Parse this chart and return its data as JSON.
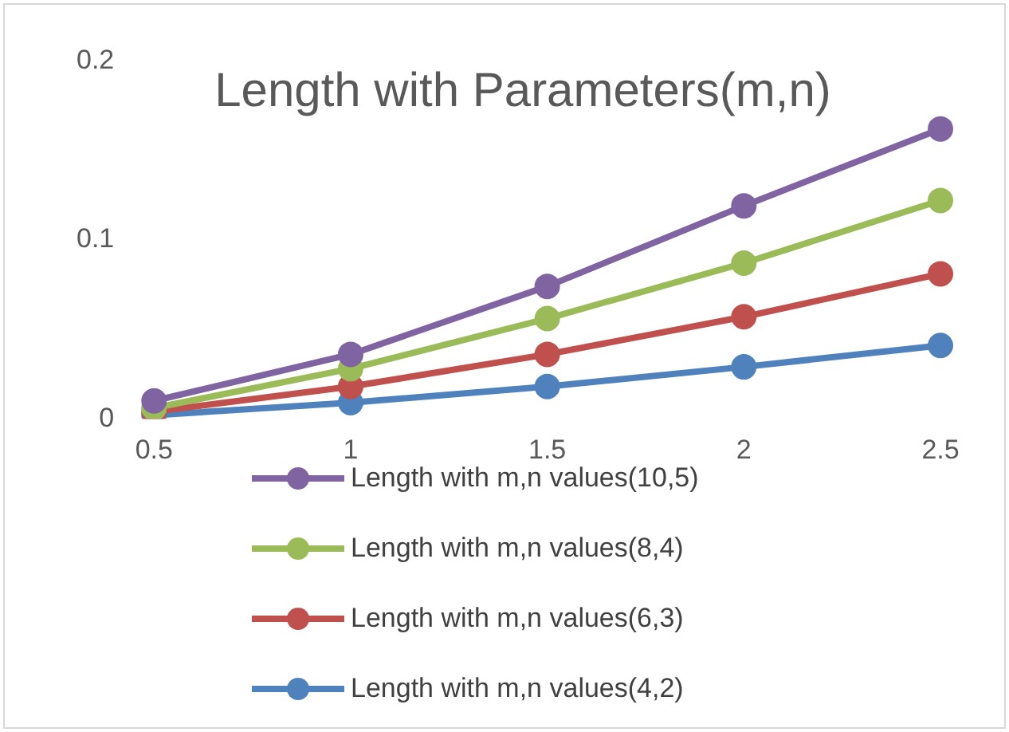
{
  "chart_data": {
    "type": "line",
    "title": "Length with Parameters(m,n)",
    "categories": [
      "0.5",
      "1",
      "1.5",
      "2",
      "2.5"
    ],
    "ylim": [
      0,
      0.2
    ],
    "yticks": [
      0,
      0.1,
      0.2
    ],
    "grid": false,
    "legend": "bottom",
    "marker": "circle",
    "line_style": "solid",
    "series": [
      {
        "name": "Length with m,n values(10,5)",
        "color": "#8064a2",
        "values": [
          0.01,
          0.036,
          0.074,
          0.119,
          0.162
        ]
      },
      {
        "name": "Length with m,n values(8,4)",
        "color": "#9bbb59",
        "values": [
          0.006,
          0.028,
          0.056,
          0.087,
          0.122
        ]
      },
      {
        "name": "Length with m,n values(6,3)",
        "color": "#c0504d",
        "values": [
          0.004,
          0.018,
          0.036,
          0.057,
          0.081
        ]
      },
      {
        "name": "Length with m,n values(4,2)",
        "color": "#4f81bd",
        "values": [
          0.002,
          0.009,
          0.018,
          0.029,
          0.041
        ]
      }
    ]
  }
}
